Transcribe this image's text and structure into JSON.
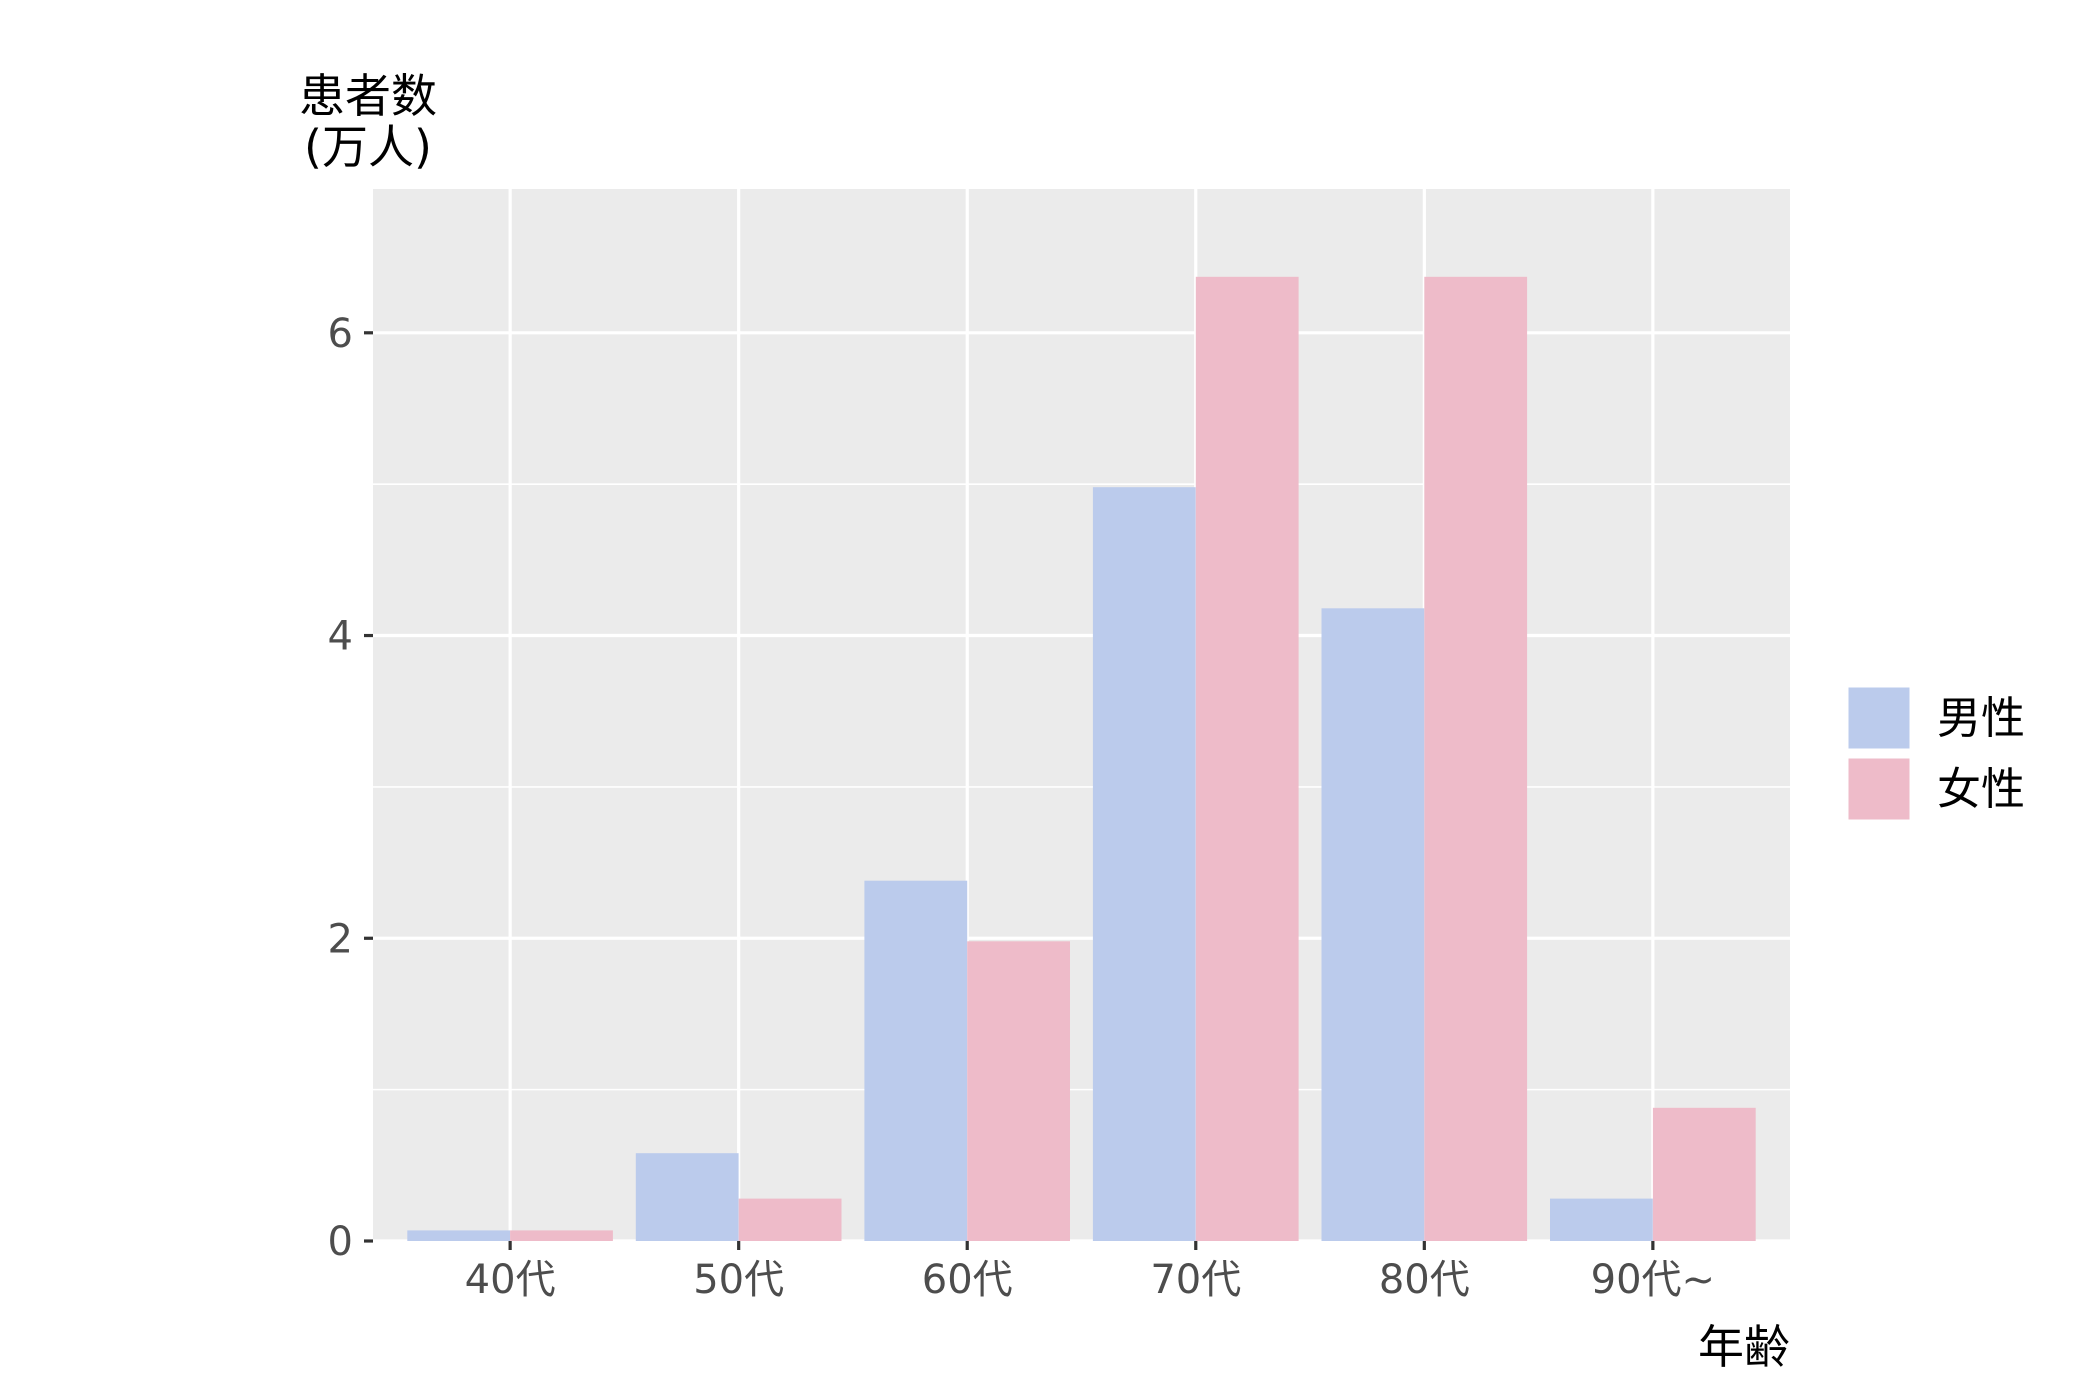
{
  "chart_data": {
    "type": "bar",
    "categories": [
      "40代",
      "50代",
      "60代",
      "70代",
      "80代",
      "90代~"
    ],
    "series": [
      {
        "name": "男性",
        "values": [
          0.07,
          0.58,
          2.38,
          4.98,
          4.18,
          0.28
        ]
      },
      {
        "name": "女性",
        "values": [
          0.07,
          0.28,
          1.98,
          6.37,
          6.37,
          0.88
        ]
      }
    ],
    "title": "",
    "xlabel": "年齢",
    "ylabel_line1": "患者数",
    "ylabel_line2": "(万人)",
    "ylim": [
      0,
      6.95
    ],
    "yticks": [
      0,
      2,
      4,
      6
    ],
    "ytick_labels": [
      "0",
      "2",
      "4",
      "6"
    ],
    "grid": true,
    "legend_position": "right",
    "colors": {
      "series": [
        "#bbcbec",
        "#eebbc9"
      ],
      "panel_background": "#ebebeb",
      "grid_line": "#ffffff",
      "tick_text": "#4d4d4d",
      "axis_text": "#000000"
    }
  }
}
